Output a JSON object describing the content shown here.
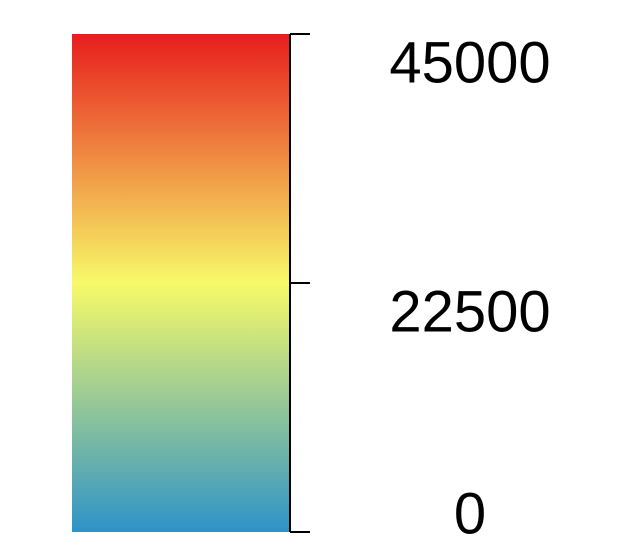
{
  "chart_data": {
    "type": "heatmap",
    "component": "color-scale-legend",
    "title": "",
    "range": [
      0,
      45000
    ],
    "ticks": [
      {
        "value": 45000,
        "label": "45000"
      },
      {
        "value": 22500,
        "label": "22500"
      },
      {
        "value": 0,
        "label": "0"
      }
    ],
    "color_stops": [
      {
        "value": 0,
        "color": "#2e93c9"
      },
      {
        "value": 22500,
        "color": "#f7fa68"
      },
      {
        "value": 45000,
        "color": "#e71d1d"
      }
    ]
  }
}
